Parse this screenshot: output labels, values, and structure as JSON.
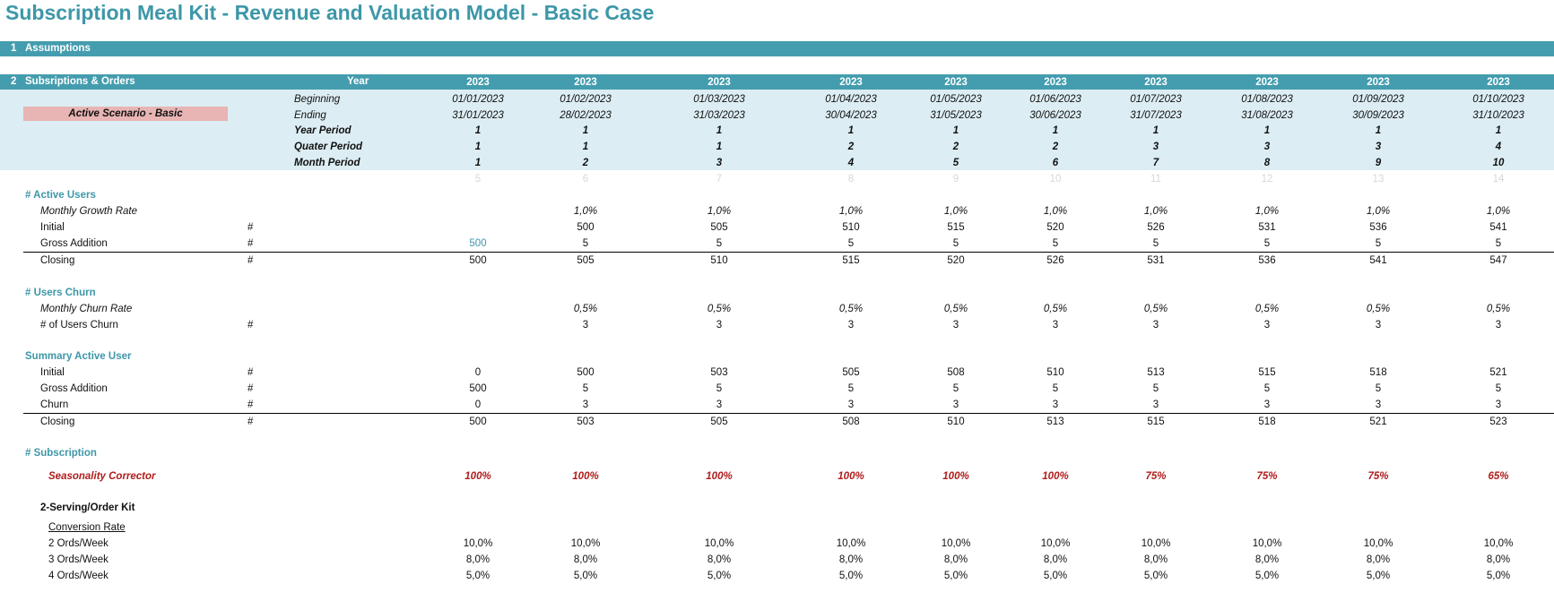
{
  "title": "Subscription Meal Kit - Revenue and Valuation Model - Basic Case",
  "section1": {
    "num": "1",
    "label": "Assumptions"
  },
  "section2": {
    "num": "2",
    "label": "Subsriptions & Orders",
    "year_label": "Year"
  },
  "scenario_label": "Active Scenario - Basic",
  "header_labels": {
    "beginning": "Beginning",
    "ending": "Ending",
    "year_period": "Year Period",
    "quarter_period": "Quater Period",
    "month_period": "Month Period"
  },
  "hash": "#",
  "columns": [
    {
      "year": "2023",
      "begin": "01/01/2023",
      "end": "31/01/2023",
      "yp": "1",
      "qp": "1",
      "mp": "1",
      "idx": "5"
    },
    {
      "year": "2023",
      "begin": "01/02/2023",
      "end": "28/02/2023",
      "yp": "1",
      "qp": "1",
      "mp": "2",
      "idx": "6"
    },
    {
      "year": "2023",
      "begin": "01/03/2023",
      "end": "31/03/2023",
      "yp": "1",
      "qp": "1",
      "mp": "3",
      "idx": "7"
    },
    {
      "year": "2023",
      "begin": "01/04/2023",
      "end": "30/04/2023",
      "yp": "1",
      "qp": "2",
      "mp": "4",
      "idx": "8"
    },
    {
      "year": "2023",
      "begin": "01/05/2023",
      "end": "31/05/2023",
      "yp": "1",
      "qp": "2",
      "mp": "5",
      "idx": "9"
    },
    {
      "year": "2023",
      "begin": "01/06/2023",
      "end": "30/06/2023",
      "yp": "1",
      "qp": "2",
      "mp": "6",
      "idx": "10"
    },
    {
      "year": "2023",
      "begin": "01/07/2023",
      "end": "31/07/2023",
      "yp": "1",
      "qp": "3",
      "mp": "7",
      "idx": "11"
    },
    {
      "year": "2023",
      "begin": "01/08/2023",
      "end": "31/08/2023",
      "yp": "1",
      "qp": "3",
      "mp": "8",
      "idx": "12"
    },
    {
      "year": "2023",
      "begin": "01/09/2023",
      "end": "30/09/2023",
      "yp": "1",
      "qp": "3",
      "mp": "9",
      "idx": "13"
    },
    {
      "year": "2023",
      "begin": "01/10/2023",
      "end": "31/10/2023",
      "yp": "1",
      "qp": "4",
      "mp": "10",
      "idx": "14"
    }
  ],
  "active_users": {
    "heading": "# Active Users",
    "growth_label": "Monthly Growth Rate",
    "growth": [
      "",
      "1,0%",
      "1,0%",
      "1,0%",
      "1,0%",
      "1,0%",
      "1,0%",
      "1,0%",
      "1,0%",
      "1,0%"
    ],
    "initial_label": "Initial",
    "initial": [
      "",
      "500",
      "505",
      "510",
      "515",
      "520",
      "526",
      "531",
      "536",
      "541"
    ],
    "gross_label": "Gross Addition",
    "gross": [
      "500",
      "5",
      "5",
      "5",
      "5",
      "5",
      "5",
      "5",
      "5",
      "5"
    ],
    "closing_label": "Closing",
    "closing": [
      "500",
      "505",
      "510",
      "515",
      "520",
      "526",
      "531",
      "536",
      "541",
      "547"
    ]
  },
  "users_churn": {
    "heading": "# Users Churn",
    "rate_label": "Monthly Churn Rate",
    "rate": [
      "",
      "0,5%",
      "0,5%",
      "0,5%",
      "0,5%",
      "0,5%",
      "0,5%",
      "0,5%",
      "0,5%",
      "0,5%"
    ],
    "count_label": "# of Users Churn",
    "count": [
      "",
      "3",
      "3",
      "3",
      "3",
      "3",
      "3",
      "3",
      "3",
      "3"
    ]
  },
  "summary": {
    "heading": "Summary Active User",
    "initial_label": "Initial",
    "initial": [
      "0",
      "500",
      "503",
      "505",
      "508",
      "510",
      "513",
      "515",
      "518",
      "521"
    ],
    "gross_label": "Gross Addition",
    "gross": [
      "500",
      "5",
      "5",
      "5",
      "5",
      "5",
      "5",
      "5",
      "5",
      "5"
    ],
    "churn_label": "Churn",
    "churn": [
      "0",
      "3",
      "3",
      "3",
      "3",
      "3",
      "3",
      "3",
      "3",
      "3"
    ],
    "closing_label": "Closing",
    "closing": [
      "500",
      "503",
      "505",
      "508",
      "510",
      "513",
      "515",
      "518",
      "521",
      "523"
    ]
  },
  "subscription": {
    "heading": "# Subscription",
    "seasonality_label": "Seasonality Corrector",
    "seasonality": [
      "100%",
      "100%",
      "100%",
      "100%",
      "100%",
      "100%",
      "75%",
      "75%",
      "75%",
      "65%"
    ],
    "kit_label": "2-Serving/Order Kit",
    "conversion_label": "Conversion Rate",
    "ord2_label": "2 Ords/Week",
    "ord2": [
      "10,0%",
      "10,0%",
      "10,0%",
      "10,0%",
      "10,0%",
      "10,0%",
      "10,0%",
      "10,0%",
      "10,0%",
      "10,0%"
    ],
    "ord3_label": "3 Ords/Week",
    "ord3": [
      "8,0%",
      "8,0%",
      "8,0%",
      "8,0%",
      "8,0%",
      "8,0%",
      "8,0%",
      "8,0%",
      "8,0%",
      "8,0%"
    ],
    "ord4_label": "4 Ords/Week",
    "ord4": [
      "5,0%",
      "5,0%",
      "5,0%",
      "5,0%",
      "5,0%",
      "5,0%",
      "5,0%",
      "5,0%",
      "5,0%",
      "5,0%"
    ]
  },
  "colors": {
    "teal": "#449dae",
    "band": "#dcedf3",
    "scenario": "#e8b4b4",
    "red": "#b01c1c"
  }
}
